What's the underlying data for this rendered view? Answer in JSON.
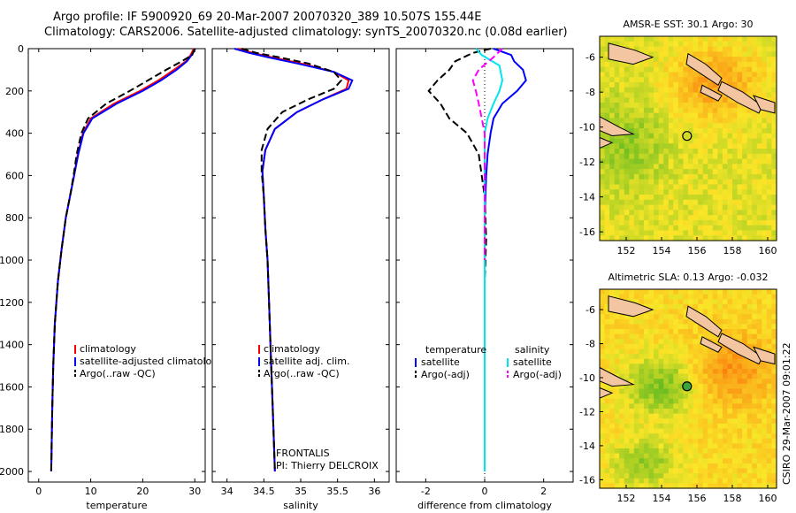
{
  "title": {
    "line1": "Argo profile: IF 5900920_69 20-Mar-2007 20070320_389 10.507S 155.44E",
    "line2": "Climatology: CARS2006. Satellite-adjusted climatology: synTS_20070320.nc (0.08d earlier)"
  },
  "credit": "CSIRO 29-Mar-2007 09:01:22",
  "colors": {
    "red": "#ff0000",
    "blue": "#0000ff",
    "black": "#000000",
    "cyan": "#00e5ee",
    "magenta": "#ff00ff"
  },
  "depth_ticks": [
    "0",
    "200",
    "400",
    "600",
    "800",
    "1000",
    "1200",
    "1400",
    "1600",
    "1800",
    "2000"
  ],
  "panel_text": {
    "frontalis": "FRONTALIS",
    "pi": "PI: Thierry DELCROIX"
  },
  "chart_data": [
    {
      "type": "line",
      "xlabel": "temperature",
      "ylim": [
        2050,
        0
      ],
      "xlim": [
        -2,
        32
      ],
      "xticks": [
        "0",
        "10",
        "20",
        "30"
      ],
      "legend": {
        "placement": "bottom",
        "entries": [
          "climatology",
          "satellite-adjusted climatology",
          "Argo(..raw -QC)"
        ]
      },
      "series": [
        {
          "name": "climatology",
          "color": "red",
          "dash": "solid",
          "x": [
            29.8,
            29.2,
            28.3,
            26.0,
            23.0,
            19.5,
            14.5,
            10.0,
            8.5,
            7.5,
            6.8,
            6.0,
            5.2,
            4.4,
            3.7,
            3.1,
            2.8,
            2.6,
            2.5,
            2.4
          ],
          "y": [
            0,
            30,
            60,
            100,
            150,
            200,
            260,
            330,
            400,
            500,
            600,
            700,
            800,
            950,
            1100,
            1300,
            1500,
            1700,
            1850,
            2000
          ]
        },
        {
          "name": "satellite-adjusted climatology",
          "color": "blue",
          "dash": "solid",
          "x": [
            30.1,
            29.4,
            28.5,
            26.5,
            23.5,
            20.0,
            15.0,
            10.3,
            8.6,
            7.6,
            6.8,
            6.0,
            5.2,
            4.4,
            3.7,
            3.1,
            2.8,
            2.6,
            2.5,
            2.4
          ],
          "y": [
            0,
            30,
            60,
            100,
            150,
            200,
            260,
            330,
            400,
            500,
            600,
            700,
            800,
            950,
            1100,
            1300,
            1500,
            1700,
            1850,
            2000
          ]
        },
        {
          "name": "Argo(..raw -QC)",
          "color": "black",
          "dash": "dashed",
          "x": [
            30.0,
            29.5,
            27.5,
            24.5,
            21.0,
            17.5,
            13.0,
            9.5,
            8.2,
            7.3,
            6.7,
            6.0,
            5.2,
            4.4,
            3.7,
            3.1,
            2.8,
            2.6,
            2.5,
            2.4
          ],
          "y": [
            0,
            30,
            60,
            100,
            150,
            200,
            260,
            330,
            400,
            500,
            600,
            700,
            800,
            950,
            1100,
            1300,
            1500,
            1700,
            1850,
            2000
          ]
        }
      ]
    },
    {
      "type": "line",
      "xlabel": "salinity",
      "ylim": [
        2050,
        0
      ],
      "xlim": [
        33.8,
        36.2
      ],
      "xticks": [
        "34",
        "34.5",
        "35",
        "35.5",
        "36"
      ],
      "legend": {
        "placement": "bottom",
        "entries": [
          "climatology",
          "satellite adj. clim.",
          "Argo(..raw -QC)"
        ]
      },
      "series": [
        {
          "name": "climatology",
          "color": "red",
          "dash": "solid",
          "x": [
            34.15,
            34.35,
            34.6,
            35.0,
            35.45,
            35.65,
            35.62,
            35.3,
            34.95,
            34.65,
            34.52,
            34.48,
            34.5,
            34.52,
            34.55,
            34.57,
            34.59,
            34.61,
            34.63,
            34.65
          ],
          "y": [
            0,
            20,
            40,
            70,
            110,
            150,
            190,
            240,
            300,
            380,
            480,
            580,
            700,
            850,
            1000,
            1200,
            1400,
            1600,
            1800,
            2000
          ]
        },
        {
          "name": "satellite adj. clim.",
          "color": "blue",
          "dash": "solid",
          "x": [
            34.1,
            34.3,
            34.55,
            34.95,
            35.45,
            35.7,
            35.65,
            35.3,
            34.95,
            34.65,
            34.52,
            34.48,
            34.5,
            34.52,
            34.55,
            34.57,
            34.59,
            34.61,
            34.63,
            34.65
          ],
          "y": [
            0,
            20,
            40,
            70,
            110,
            150,
            190,
            240,
            300,
            380,
            480,
            580,
            700,
            850,
            1000,
            1200,
            1400,
            1600,
            1800,
            2000
          ]
        },
        {
          "name": "Argo(..raw -QC)",
          "color": "black",
          "dash": "dashed",
          "x": [
            34.2,
            34.4,
            34.7,
            35.1,
            35.45,
            35.55,
            35.45,
            35.1,
            34.75,
            34.55,
            34.47,
            34.47,
            34.5,
            34.52,
            34.55,
            34.57,
            34.59,
            34.61,
            34.63,
            34.65
          ],
          "y": [
            0,
            20,
            40,
            70,
            110,
            150,
            190,
            240,
            300,
            380,
            480,
            580,
            700,
            850,
            1000,
            1200,
            1400,
            1600,
            1800,
            2000
          ]
        }
      ]
    },
    {
      "type": "line",
      "xlabel": "difference from climatology",
      "ylim": [
        2050,
        0
      ],
      "xlim": [
        -3,
        3
      ],
      "xticks": [
        "-2",
        "0",
        "2"
      ],
      "legend": {
        "placement": "bottom",
        "headers": [
          "temperature",
          "salinity"
        ],
        "entries": [
          "satellite",
          "Argo(-adj)",
          "satellite",
          "Argo(-adj)"
        ]
      },
      "series": [
        {
          "name": "satellite",
          "group": "temperature",
          "color": "blue",
          "dash": "solid",
          "x": [
            0.3,
            0.9,
            1.0,
            1.3,
            1.4,
            1.1,
            0.6,
            0.3,
            0.2,
            0.1,
            0.05,
            0,
            0,
            0,
            0,
            0,
            0
          ],
          "y": [
            0,
            30,
            60,
            100,
            150,
            200,
            260,
            330,
            400,
            500,
            600,
            800,
            1000,
            1300,
            1600,
            1850,
            2000
          ]
        },
        {
          "name": "Argo(-adj)",
          "group": "temperature",
          "color": "black",
          "dash": "dashed",
          "x": [
            0.2,
            -0.4,
            -1.0,
            -1.2,
            -1.6,
            -1.9,
            -1.5,
            -1.2,
            -0.6,
            -0.4,
            -0.2,
            -0.1,
            0,
            0.05,
            0,
            0,
            0,
            0,
            0
          ],
          "y": [
            0,
            20,
            60,
            100,
            150,
            200,
            260,
            330,
            400,
            450,
            500,
            600,
            700,
            900,
            1100,
            1300,
            1600,
            1850,
            2000
          ]
        },
        {
          "name": "satellite",
          "group": "salinity",
          "color": "cyan",
          "dash": "solid",
          "x": [
            -0.3,
            -0.1,
            0.5,
            0.6,
            0.5,
            0.3,
            0.1,
            0,
            0,
            0,
            0,
            0,
            0
          ],
          "y": [
            0,
            30,
            80,
            150,
            200,
            260,
            330,
            400,
            500,
            700,
            1000,
            1500,
            2000
          ]
        },
        {
          "name": "Argo(-adj)",
          "group": "salinity",
          "color": "magenta",
          "dash": "dashed",
          "x": [
            0.6,
            0.3,
            -0.2,
            -0.4,
            -0.3,
            -0.2,
            -0.1,
            0,
            0,
            0,
            0
          ],
          "y": [
            0,
            40,
            100,
            150,
            200,
            260,
            330,
            400,
            500,
            700,
            1000
          ]
        }
      ]
    },
    {
      "type": "heatmap",
      "title": "AMSR-E SST: 30.1 Argo: 30",
      "xlim": [
        150.5,
        160.5
      ],
      "ylim": [
        -16.5,
        -4.8
      ],
      "xticks": [
        "152",
        "154",
        "156",
        "158",
        "160"
      ],
      "yticks": [
        "-6",
        "-8",
        "-10",
        "-12",
        "-14",
        "-16"
      ],
      "colormap": "green-yellow-orange",
      "marker": {
        "lon": 155.44,
        "lat": -10.507,
        "style": "open-circle"
      }
    },
    {
      "type": "heatmap",
      "title": "Altimetric SLA: 0.13 Argo: -0.032",
      "xlim": [
        150.5,
        160.5
      ],
      "ylim": [
        -16.5,
        -4.8
      ],
      "xticks": [
        "152",
        "154",
        "156",
        "158",
        "160"
      ],
      "yticks": [
        "-6",
        "-8",
        "-10",
        "-12",
        "-14",
        "-16"
      ],
      "colormap": "green-yellow-orange",
      "marker": {
        "lon": 155.44,
        "lat": -10.507,
        "style": "filled-circle"
      }
    }
  ]
}
